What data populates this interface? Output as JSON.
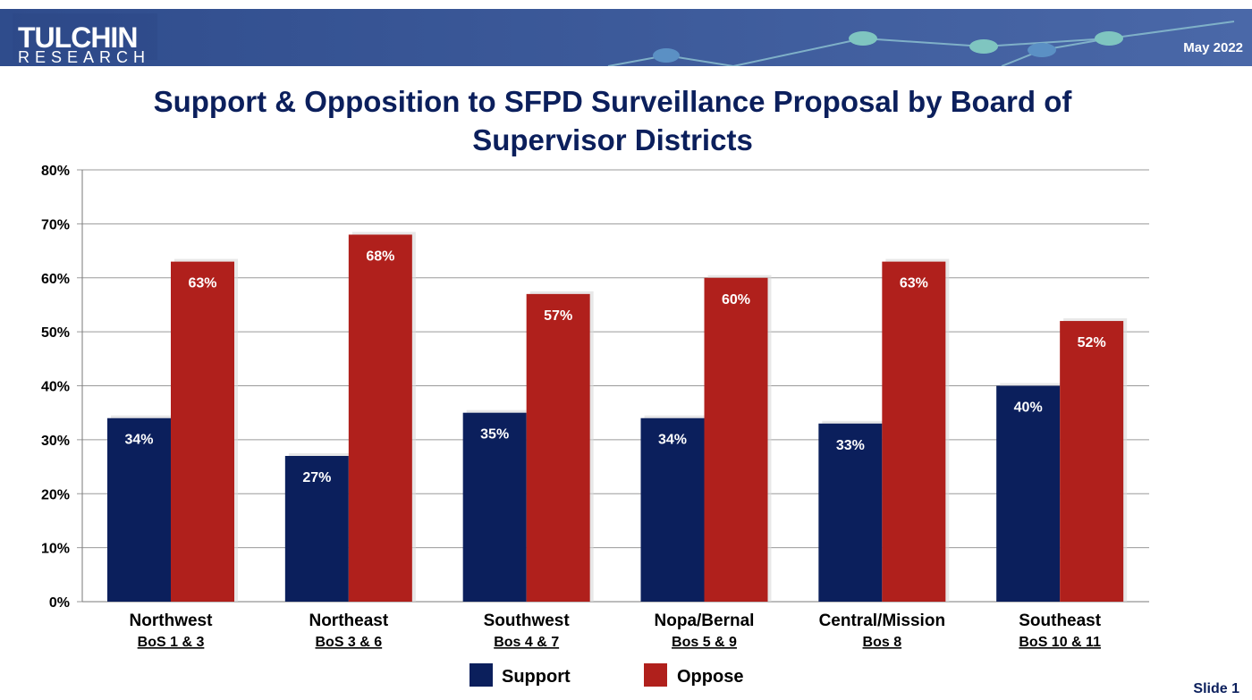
{
  "header": {
    "logo_line1": "TULCHIN",
    "logo_line2": "RESEARCH",
    "date": "May 2022"
  },
  "footer": {
    "slide": "Slide 1"
  },
  "colors": {
    "support": "#0b1f5c",
    "oppose": "#b0201c",
    "header": "#3c5a9a",
    "title": "#0b1f5c"
  },
  "chart_data": {
    "type": "bar",
    "title": "Support & Opposition to SFPD Surveillance Proposal by Board of Supervisor Districts",
    "categories": [
      {
        "name": "Northwest",
        "sub": "BoS 1 & 3"
      },
      {
        "name": "Northeast",
        "sub": "BoS 3 & 6"
      },
      {
        "name": "Southwest",
        "sub": "Bos 4 & 7"
      },
      {
        "name": "Nopa/Bernal",
        "sub": "Bos 5 & 9"
      },
      {
        "name": "Central/Mission",
        "sub": "Bos 8"
      },
      {
        "name": "Southeast",
        "sub": "BoS 10 & 11"
      }
    ],
    "series": [
      {
        "name": "Support",
        "values": [
          34,
          27,
          35,
          34,
          33,
          40
        ],
        "labels": [
          "34%",
          "27%",
          "35%",
          "34%",
          "33%",
          "40%"
        ]
      },
      {
        "name": "Oppose",
        "values": [
          63,
          68,
          57,
          60,
          63,
          52
        ],
        "labels": [
          "63%",
          "68%",
          "57%",
          "60%",
          "63%",
          "52%"
        ]
      }
    ],
    "ylim": [
      0,
      80
    ],
    "yticks": [
      "0%",
      "10%",
      "20%",
      "30%",
      "40%",
      "50%",
      "60%",
      "70%",
      "80%"
    ],
    "grid": true,
    "legend": "bottom"
  }
}
